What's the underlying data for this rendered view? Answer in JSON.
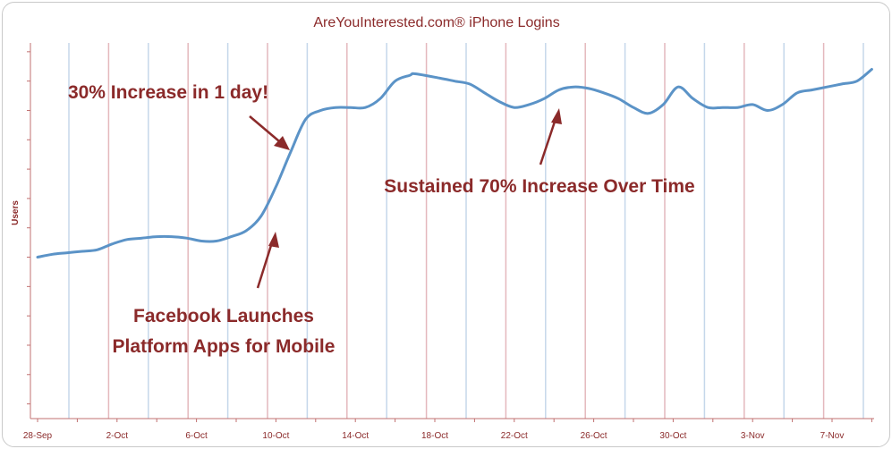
{
  "chart_data": {
    "type": "line",
    "title": "AreYouInterested.com® iPhone Logins",
    "ylabel": "Users",
    "xlabel": "",
    "x_tick_labels": [
      "28-Sep",
      "2-Oct",
      "6-Oct",
      "10-Oct",
      "14-Oct",
      "18-Oct",
      "22-Oct",
      "26-Oct",
      "30-Oct",
      "3-Nov",
      "7-Nov"
    ],
    "x_days": [
      0,
      0.75,
      1.5,
      2.25,
      3,
      3.75,
      4.5,
      5.25,
      6,
      6.75,
      7.5,
      8.25,
      9,
      9.75,
      10.5,
      11.25,
      12,
      12.75,
      13.5,
      14.25,
      15,
      15.75,
      16.5,
      17.25,
      18,
      18.75,
      19,
      20.25,
      21,
      21.75,
      22.5,
      23.25,
      24,
      24.75,
      25.5,
      26.25,
      27,
      27.75,
      28.5,
      29.25,
      30,
      30.75,
      31.5,
      32.25,
      33,
      33.75,
      34.5,
      35.25,
      36,
      36.75,
      37.5,
      38.25,
      39,
      39.75,
      40.5,
      41.25,
      42
    ],
    "series": [
      {
        "values": [
          20,
          21,
          21.5,
          22,
          22.5,
          24.5,
          26,
          26.5,
          27,
          27,
          26.5,
          25.5,
          25.5,
          27,
          29,
          34,
          44,
          56,
          67,
          70,
          71,
          71,
          71,
          74,
          80,
          82,
          82.5,
          81,
          80,
          79,
          76,
          73,
          71,
          72,
          74,
          77,
          78,
          77.5,
          76,
          74,
          71,
          69,
          72,
          78,
          74,
          71,
          71,
          71,
          72,
          70,
          72,
          76,
          77,
          78,
          79,
          80,
          84
        ]
      }
    ],
    "ylim": [
      -35,
      93
    ],
    "y_ticks": [
      -30,
      -20,
      -10,
      0,
      10,
      20,
      30,
      40,
      50,
      60,
      70,
      80,
      90
    ],
    "grid": true,
    "annotations": [
      "30% Increase in 1 day!",
      "Facebook Launches",
      "Platform Apps for Mobile",
      "Sustained 70% Increase Over Time"
    ],
    "colors": {
      "line": "#5b93c7",
      "text": "#8b2a2a",
      "grid_blue": "#c5d7ea",
      "grid_red": "#e4b8bd",
      "axis": "#c07070",
      "arrow": "#8b2a2a"
    }
  }
}
